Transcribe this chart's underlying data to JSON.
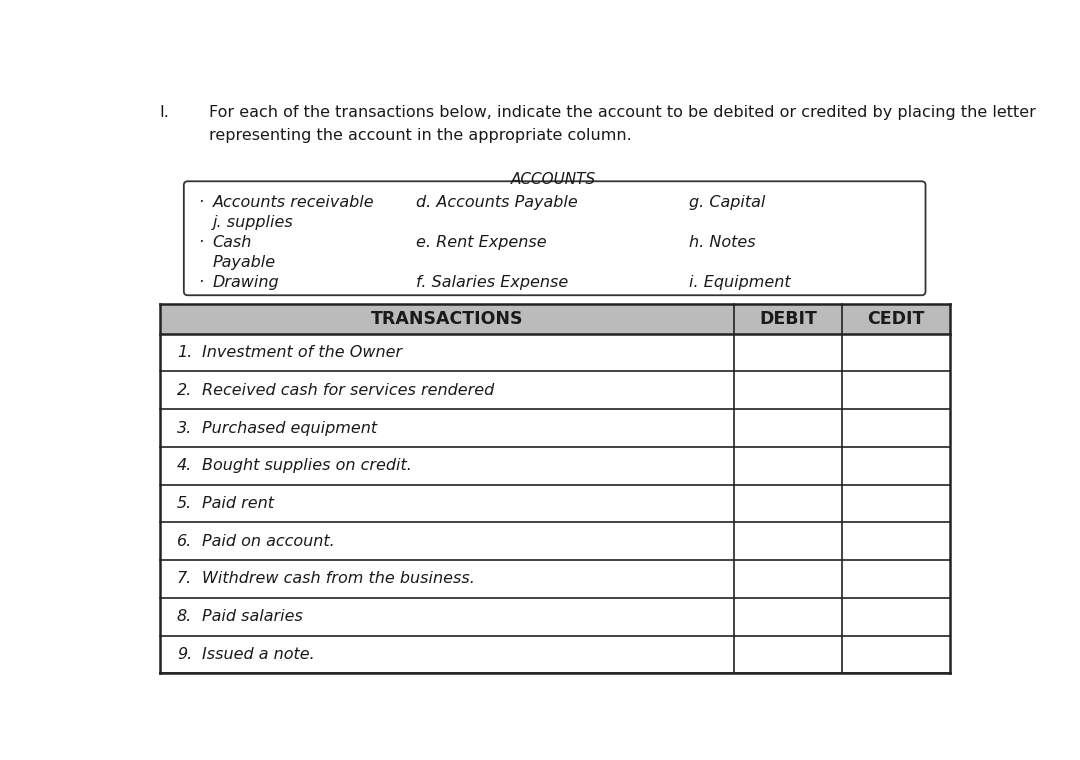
{
  "title_number": "I.",
  "title_text": "For each of the transactions below, indicate the account to be debited or credited by placing the letter\nrepresenting the account in the appropriate column.",
  "accounts_title": "ACCOUNTS",
  "accounts_col1_lines": [
    [
      "·",
      "Accounts receivable"
    ],
    [
      "",
      "j. supplies"
    ],
    [
      "·",
      "Cash"
    ],
    [
      "",
      "Payable"
    ],
    [
      "·",
      "Drawing"
    ]
  ],
  "accounts_col2": [
    "d. Accounts Payable",
    "",
    "e. Rent Expense",
    "",
    "f. Salaries Expense"
  ],
  "accounts_col3": [
    "g. Capital",
    "",
    "h. Notes",
    "",
    "i. Equipment"
  ],
  "table_header": [
    "TRANSACTIONS",
    "DEBIT",
    "CEDIT"
  ],
  "transactions": [
    [
      "1.",
      "Investment of the Owner"
    ],
    [
      "2.",
      "Received cash for services rendered"
    ],
    [
      "3.",
      "Purchased equipment"
    ],
    [
      "4.",
      "Bought supplies on credit."
    ],
    [
      "5.",
      "Paid rent"
    ],
    [
      "6.",
      "Paid on account."
    ],
    [
      "7.",
      "Withdrew cash from the business."
    ],
    [
      "8.",
      "Paid salaries"
    ],
    [
      "9.",
      "Issued a note."
    ]
  ],
  "bg_color": "#ffffff",
  "header_bg": "#bbbbbb",
  "table_border_color": "#222222",
  "text_color": "#1a1a1a",
  "accounts_box_color": "#333333",
  "font_size_title": 11.5,
  "font_size_accounts": 11.5,
  "font_size_table": 11.5,
  "font_size_header": 12.5
}
